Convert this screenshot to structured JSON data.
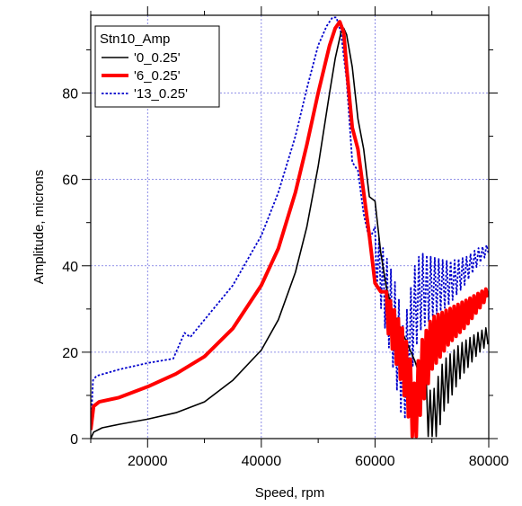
{
  "chart_data": {
    "type": "line",
    "xlabel": "Speed, rpm",
    "ylabel": "Amplitude, microns",
    "xlim": [
      10000,
      80000
    ],
    "ylim": [
      0,
      98
    ],
    "xticks": [
      20000,
      40000,
      60000,
      80000
    ],
    "yticks": [
      0,
      20,
      40,
      60,
      80
    ],
    "grid": true,
    "legend": {
      "title": "Stn10_Amp",
      "placement": "top-left"
    },
    "series": [
      {
        "name": "'0_0.25'",
        "color": "#000000",
        "style": "solid",
        "x": [
          10000,
          10500,
          12000,
          15000,
          20000,
          25000,
          30000,
          35000,
          40000,
          43000,
          46000,
          48000,
          50000,
          52000,
          53000,
          54000,
          54500,
          55000,
          56000,
          57000,
          58000,
          59000,
          60000,
          61000,
          62000,
          63000,
          64000,
          65000,
          66000,
          67000,
          68000,
          69000,
          70000,
          72000,
          75000,
          78000,
          80000
        ],
        "y": [
          0,
          1.5,
          2.5,
          3.3,
          4.5,
          6.0,
          8.5,
          13.5,
          20.5,
          27.5,
          38.5,
          49.0,
          63.0,
          80.0,
          88.0,
          94.0,
          95.0,
          93.5,
          86.0,
          74.0,
          67.0,
          56.0,
          55.0,
          43.0,
          35.0,
          30.0,
          27.0,
          24.0,
          21.0,
          18.0,
          14.0,
          8.0,
          3.0,
          12.0,
          18.0,
          22.0,
          24.0
        ],
        "envelope": {
          "x": [
            69000,
            70000,
            72000,
            75000,
            78000,
            80000
          ],
          "half": [
            6,
            7,
            6,
            4,
            2.5,
            2
          ]
        }
      },
      {
        "name": "'6_0.25'",
        "color": "#ff0000",
        "style": "solid-thick",
        "x": [
          10000,
          10500,
          11500,
          15000,
          20000,
          25000,
          30000,
          35000,
          40000,
          43000,
          46000,
          48000,
          50000,
          52000,
          53000,
          53800,
          54500,
          55000,
          56000,
          57000,
          58000,
          59000,
          60000,
          61000,
          62000,
          63000,
          64000,
          65000,
          66000,
          67000,
          68000,
          70000,
          73000,
          76000,
          78000,
          80000
        ],
        "y": [
          2.0,
          7.5,
          8.5,
          9.5,
          12.0,
          15.0,
          19.0,
          25.5,
          35.5,
          44.0,
          57.0,
          68.0,
          80.0,
          91.0,
          95.0,
          96.5,
          94.0,
          86.0,
          72.0,
          67.0,
          57.0,
          47.0,
          36.0,
          34.0,
          30.0,
          26.0,
          22.0,
          18.0,
          12.0,
          3.0,
          14.0,
          22.0,
          26.0,
          29.0,
          31.5,
          34.0
        ],
        "envelope": {
          "x": [
            62000,
            64000,
            66000,
            67000,
            68000,
            70000,
            73000,
            76000,
            80000
          ],
          "half": [
            4,
            6,
            8,
            9,
            8,
            6,
            4,
            3,
            1
          ]
        }
      },
      {
        "name": "'13_0.25'",
        "color": "#0000cc",
        "style": "dotted",
        "x": [
          10000,
          10400,
          11000,
          15000,
          20000,
          24500,
          25500,
          26500,
          27500,
          30000,
          35000,
          40000,
          43000,
          46000,
          48000,
          50000,
          51500,
          52500,
          53200,
          54000,
          55000,
          56000,
          57000,
          58000,
          59000,
          60000,
          61000,
          62000,
          63000,
          64000,
          65000,
          66000,
          67000,
          68000,
          70000,
          73000,
          76000,
          78000,
          80000
        ],
        "y": [
          2.0,
          13.5,
          14.5,
          16.0,
          17.5,
          18.5,
          21.5,
          24.5,
          23.5,
          27.5,
          35.5,
          47.0,
          57.0,
          70.0,
          81.0,
          91.0,
          95.5,
          97.5,
          97.5,
          94.0,
          83.0,
          64.0,
          62.0,
          52.0,
          46.0,
          43.0,
          38.0,
          33.0,
          28.0,
          22.0,
          14.0,
          22.0,
          30.0,
          34.0,
          35.0,
          36.0,
          39.0,
          42.0,
          44.0
        ],
        "envelope": {
          "x": [
            60000,
            62000,
            64000,
            66000,
            68000,
            70000,
            73000,
            76000,
            80000
          ],
          "half": [
            6,
            9,
            12,
            11,
            9,
            7,
            5,
            3,
            1
          ]
        }
      }
    ]
  }
}
